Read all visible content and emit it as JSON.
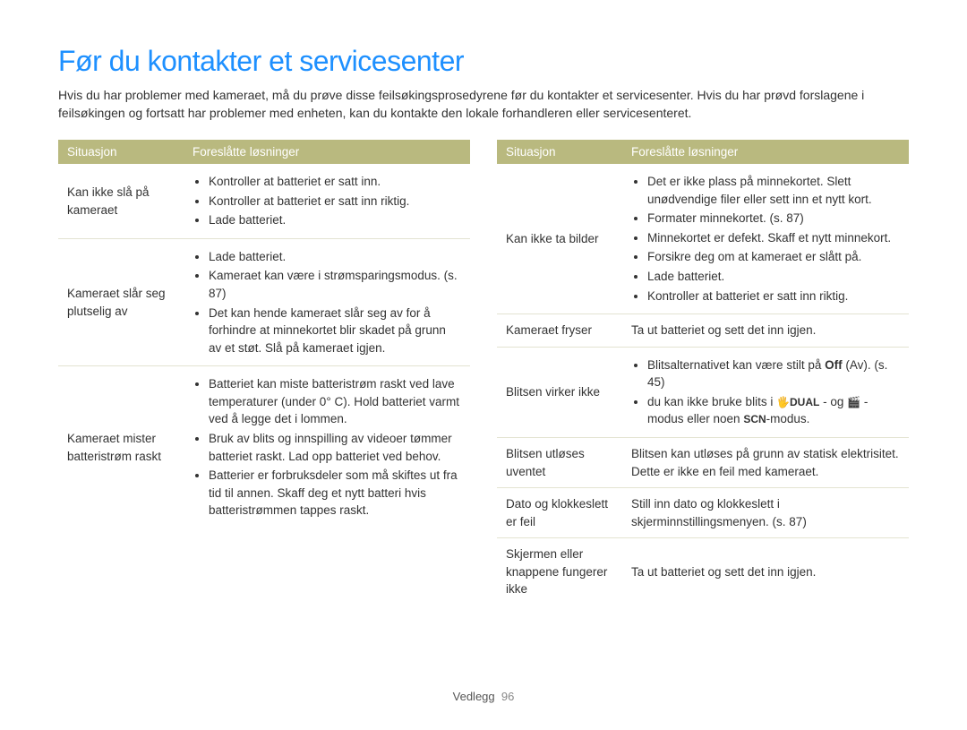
{
  "title": "Før du kontakter et servicesenter",
  "intro": "Hvis du har problemer med kameraet, må du prøve disse feilsøkingsprosedyrene før du kontakter et servicesenter. Hvis du har prøvd forslagene i feilsøkingen og fortsatt har problemer med enheten, kan du kontakte den lokale forhandleren eller servicesenteret.",
  "headers": {
    "situation": "Situasjon",
    "solutions": "Foreslåtte løsninger"
  },
  "left_rows": [
    {
      "situation": "Kan ikke slå på kameraet",
      "bullets": [
        "Kontroller at batteriet er satt inn.",
        "Kontroller at batteriet er satt inn riktig.",
        "Lade batteriet."
      ]
    },
    {
      "situation": "Kameraet slår seg plutselig av",
      "bullets": [
        "Lade batteriet.",
        "Kameraet kan være i strømsparingsmodus. (s. 87)",
        "Det kan hende kameraet slår seg av for å forhindre at minnekortet blir skadet på grunn av et støt. Slå på kameraet igjen."
      ]
    },
    {
      "situation": "Kameraet mister batteristrøm raskt",
      "bullets": [
        "Batteriet kan miste batteristrøm raskt ved lave temperaturer (under 0° C). Hold batteriet varmt ved å legge det i lommen.",
        "Bruk av blits og innspilling av videoer tømmer batteriet raskt. Lad opp batteriet ved behov.",
        "Batterier er forbruksdeler som må skiftes ut fra tid til annen. Skaff deg et nytt batteri hvis batteristrømmen tappes raskt."
      ]
    }
  ],
  "right_rows": [
    {
      "situation": "Kan ikke ta bilder",
      "bullets": [
        "Det er ikke plass på minnekortet. Slett unødvendige filer eller sett inn et nytt kort.",
        "Formater minnekortet. (s. 87)",
        "Minnekortet er defekt. Skaff et nytt minnekort.",
        "Forsikre deg om at kameraet er slått på.",
        "Lade batteriet.",
        "Kontroller at batteriet er satt inn riktig."
      ]
    },
    {
      "situation": "Kameraet fryser",
      "plain": "Ta ut batteriet og sett det inn igjen."
    },
    {
      "situation": "Blitsen virker ikke",
      "html_bullets": true
    },
    {
      "situation": "Blitsen utløses uventet",
      "plain_lines": [
        "Blitsen kan utløses på grunn av statisk elektrisitet.",
        "Dette er ikke en feil med kameraet."
      ]
    },
    {
      "situation": "Dato og klokkeslett er feil",
      "plain": "Still inn dato og klokkeslett i skjerminnstillingsmenyen. (s. 87)"
    },
    {
      "situation": "Skjermen eller knappene fungerer ikke",
      "plain": "Ta ut batteriet og sett det inn igjen."
    }
  ],
  "blits": {
    "line1_a": "Blitsalternativet kan være stilt på ",
    "line1_off": "Off",
    "line1_b": " (Av). (s. 45)",
    "line2_a": "du kan ikke bruke blits i ",
    "dual_icon": "🖐DUAL",
    "line2_b": " - og ",
    "video_icon": "🎬",
    "line2_c": " -modus eller noen ",
    "scn": "SCN",
    "line2_d": "-modus."
  },
  "footer": {
    "section": "Vedlegg",
    "page": "96"
  }
}
